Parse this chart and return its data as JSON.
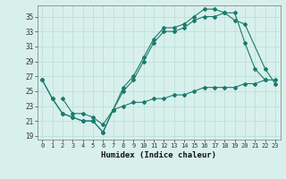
{
  "xlabel": "Humidex (Indice chaleur)",
  "xlim": [
    -0.5,
    23.5
  ],
  "ylim": [
    18.5,
    36.5
  ],
  "yticks": [
    19,
    21,
    23,
    25,
    27,
    29,
    31,
    33,
    35
  ],
  "xticks": [
    0,
    1,
    2,
    3,
    4,
    5,
    6,
    7,
    8,
    9,
    10,
    11,
    12,
    13,
    14,
    15,
    16,
    17,
    18,
    19,
    20,
    21,
    22,
    23
  ],
  "xtick_labels": [
    "0",
    "1",
    "2",
    "3",
    "4",
    "5",
    "6",
    "7",
    "8",
    "9",
    "10",
    "11",
    "12",
    "13",
    "14",
    "15",
    "16",
    "17",
    "18",
    "19",
    "20",
    "21",
    "22",
    "23"
  ],
  "line_color": "#1a7a6e",
  "bg_color": "#d8f0ec",
  "grid_color": "#b8ddd8",
  "line1_x": [
    0,
    1,
    2,
    3,
    4,
    5,
    6,
    7,
    8,
    9,
    10,
    11,
    12,
    13,
    14,
    15,
    16,
    17,
    18,
    19,
    20,
    21,
    22
  ],
  "line1_y": [
    26.5,
    24.0,
    22.0,
    21.5,
    21.0,
    21.0,
    19.5,
    22.5,
    25.5,
    27.0,
    29.5,
    32.0,
    33.5,
    33.5,
    34.0,
    35.0,
    36.0,
    36.0,
    35.5,
    35.5,
    31.5,
    28.0,
    26.5
  ],
  "line2_x": [
    0,
    1,
    2,
    3,
    4,
    5,
    6,
    7,
    8,
    9,
    10,
    11,
    12,
    13,
    14,
    15,
    16,
    17,
    18,
    19,
    20,
    22,
    23
  ],
  "line2_y": [
    26.5,
    24.0,
    22.0,
    21.5,
    21.0,
    21.0,
    19.5,
    22.5,
    25.0,
    26.5,
    29.0,
    31.5,
    33.0,
    33.0,
    33.5,
    34.5,
    35.0,
    35.0,
    35.5,
    34.5,
    34.0,
    28.0,
    26.0
  ],
  "line3_x": [
    2,
    3,
    4,
    5,
    6,
    7,
    8,
    9,
    10,
    11,
    12,
    13,
    14,
    15,
    16,
    17,
    18,
    19,
    20,
    21,
    22,
    23
  ],
  "line3_y": [
    24.0,
    22.0,
    22.0,
    21.5,
    20.5,
    22.5,
    23.0,
    23.5,
    23.5,
    24.0,
    24.0,
    24.5,
    24.5,
    25.0,
    25.5,
    25.5,
    25.5,
    25.5,
    26.0,
    26.0,
    26.5,
    26.5
  ]
}
